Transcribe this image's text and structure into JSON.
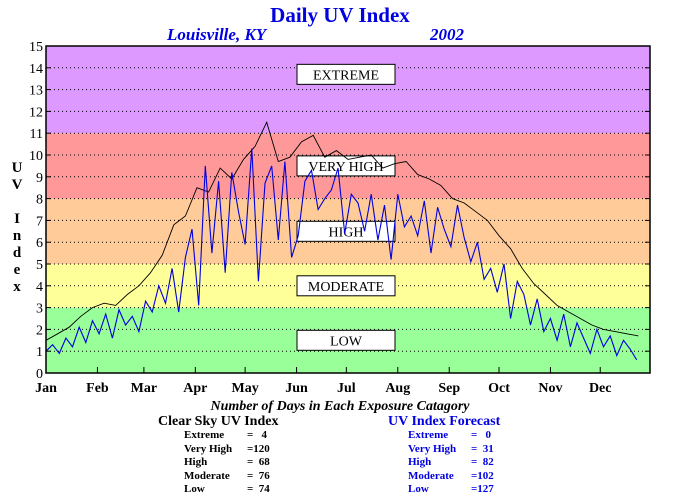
{
  "header": {
    "title": "Daily UV Index",
    "location": "Louisville, KY",
    "year": "2002"
  },
  "axis": {
    "ylabel": "UV Index"
  },
  "colors": {
    "extreme": "#dd99ff",
    "very_high": "#ff9999",
    "high": "#ffcc99",
    "moderate": "#ffff99",
    "low": "#99ff99",
    "clear_sky_series": "#000000",
    "forecast_series": "#0000e0"
  },
  "chart_data": {
    "type": "line",
    "title": "Daily UV Index",
    "subtitle": "Louisville, KY 2002",
    "xlabel": "",
    "ylabel": "UV Index",
    "xlim": [
      1,
      365
    ],
    "ylim": [
      0,
      15
    ],
    "yticks": [
      0,
      1,
      2,
      3,
      4,
      5,
      6,
      7,
      8,
      9,
      10,
      11,
      12,
      13,
      14,
      15
    ],
    "xtick_labels": [
      "Jan",
      "Feb",
      "Mar",
      "Apr",
      "May",
      "Jun",
      "Jul",
      "Aug",
      "Sep",
      "Oct",
      "Nov",
      "Dec"
    ],
    "xtick_days": [
      1,
      32,
      60,
      91,
      121,
      152,
      182,
      213,
      244,
      274,
      305,
      335
    ],
    "grid": true,
    "bands": [
      {
        "label": "LOW",
        "from": 0,
        "to": 3
      },
      {
        "label": "MODERATE",
        "from": 3,
        "to": 5
      },
      {
        "label": "HIGH",
        "from": 5,
        "to": 8
      },
      {
        "label": "VERY HIGH",
        "from": 8,
        "to": 11
      },
      {
        "label": "EXTREME",
        "from": 11,
        "to": 15
      }
    ],
    "series": [
      {
        "name": "Clear Sky UV Index",
        "x": [
          1,
          8,
          15,
          22,
          29,
          36,
          43,
          50,
          57,
          64,
          71,
          78,
          85,
          92,
          99,
          106,
          113,
          120,
          127,
          134,
          141,
          148,
          155,
          162,
          169,
          176,
          183,
          190,
          197,
          204,
          211,
          218,
          225,
          232,
          239,
          246,
          253,
          260,
          267,
          274,
          281,
          288,
          295,
          302,
          309,
          316,
          323,
          330,
          337,
          344,
          351,
          358
        ],
        "y": [
          1.5,
          1.8,
          2.1,
          2.6,
          3.0,
          3.2,
          3.1,
          3.6,
          4.0,
          4.6,
          5.4,
          6.8,
          7.2,
          8.5,
          8.3,
          9.4,
          8.9,
          9.8,
          10.4,
          11.5,
          9.7,
          9.9,
          10.6,
          10.9,
          9.9,
          10.2,
          9.8,
          9.9,
          10.0,
          9.4,
          9.6,
          9.7,
          9.1,
          8.9,
          8.6,
          8.0,
          7.8,
          7.4,
          7.0,
          6.3,
          5.7,
          4.8,
          4.1,
          3.6,
          3.1,
          2.8,
          2.5,
          2.2,
          2.0,
          1.9,
          1.8,
          1.7
        ]
      },
      {
        "name": "UV Index Forecast",
        "x": [
          1,
          5,
          9,
          13,
          17,
          21,
          25,
          29,
          33,
          37,
          41,
          45,
          49,
          53,
          57,
          61,
          65,
          69,
          73,
          77,
          81,
          85,
          89,
          93,
          97,
          101,
          105,
          109,
          113,
          117,
          121,
          125,
          129,
          133,
          137,
          141,
          145,
          149,
          153,
          157,
          161,
          165,
          169,
          173,
          177,
          181,
          185,
          189,
          193,
          197,
          201,
          205,
          209,
          213,
          217,
          221,
          225,
          229,
          233,
          237,
          241,
          245,
          249,
          253,
          257,
          261,
          265,
          269,
          273,
          277,
          281,
          285,
          289,
          293,
          297,
          301,
          305,
          309,
          313,
          317,
          321,
          325,
          329,
          333,
          337,
          341,
          345,
          349,
          353,
          357
        ],
        "y": [
          1.0,
          1.3,
          0.9,
          1.6,
          1.2,
          2.1,
          1.4,
          2.4,
          1.8,
          2.7,
          1.6,
          2.9,
          2.2,
          2.6,
          1.9,
          3.3,
          2.8,
          4.0,
          3.2,
          4.8,
          2.8,
          5.3,
          6.6,
          3.1,
          9.5,
          5.5,
          8.8,
          4.6,
          9.2,
          7.4,
          5.9,
          10.3,
          4.2,
          8.7,
          9.5,
          6.1,
          9.7,
          5.3,
          6.3,
          8.8,
          9.3,
          7.5,
          8.0,
          8.4,
          9.4,
          6.4,
          8.2,
          7.8,
          6.5,
          8.2,
          6.1,
          7.7,
          5.2,
          8.2,
          6.7,
          7.2,
          6.3,
          7.9,
          5.5,
          7.6,
          6.6,
          5.8,
          7.7,
          6.2,
          5.1,
          6.0,
          4.3,
          4.8,
          3.7,
          5.0,
          2.5,
          4.2,
          3.6,
          2.2,
          3.4,
          1.9,
          2.5,
          1.5,
          2.7,
          1.2,
          2.3,
          1.6,
          0.9,
          2.0,
          1.2,
          1.7,
          0.8,
          1.5,
          1.1,
          0.6
        ]
      }
    ]
  },
  "summary": {
    "caption": "Number of Days in Each Exposure Catagory",
    "clear_sky": {
      "title": "Clear Sky UV Index",
      "rows": [
        {
          "label": "Extreme",
          "value": "=   4"
        },
        {
          "label": "Very High",
          "value": "=120"
        },
        {
          "label": "High",
          "value": "=  68"
        },
        {
          "label": "Moderate",
          "value": "=  76"
        },
        {
          "label": "Low",
          "value": "=  74"
        }
      ]
    },
    "forecast": {
      "title": "UV Index Forecast",
      "rows": [
        {
          "label": "Extreme",
          "value": "=   0"
        },
        {
          "label": "Very High",
          "value": "=  31"
        },
        {
          "label": "High",
          "value": "=  82"
        },
        {
          "label": "Moderate",
          "value": "=102"
        },
        {
          "label": "Low",
          "value": "=127"
        }
      ]
    }
  }
}
